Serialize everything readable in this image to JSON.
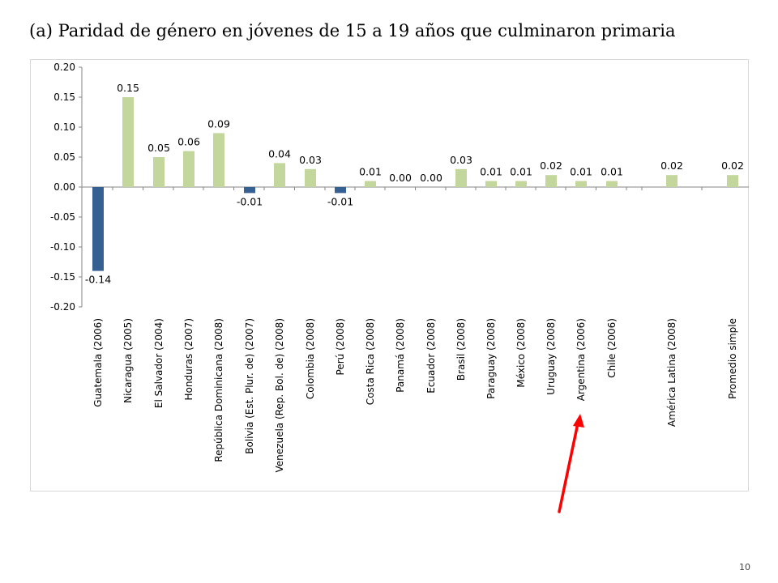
{
  "title": "(a) Paridad de género en jóvenes de 15 a 19 años que culminaron primaria",
  "page_number": "10",
  "colors": {
    "positive": "#c3d69b",
    "negative": "#376092",
    "annotation_arrow": "#ff0000"
  },
  "annotation": {
    "type": "arrow",
    "points_to": "Argentina (2006)"
  },
  "chart_data": {
    "type": "bar",
    "title": "",
    "xlabel": "",
    "ylabel": "",
    "ylim": [
      -0.2,
      0.2
    ],
    "yticks": [
      "0.20",
      "0.15",
      "0.10",
      "0.05",
      "0.00",
      "-0.05",
      "-0.10",
      "-0.15",
      "-0.20"
    ],
    "grid": false,
    "legend": "none",
    "categories": [
      "Guatemala (2006)",
      "Nicaragua (2005)",
      "El Salvador (2004)",
      "Honduras (2007)",
      "República Dominicana (2008)",
      "Bolivia (Est. Plur. de) (2007)",
      "Venezuela (Rep. Bol. de) (2008)",
      "Colombia (2008)",
      "Perú (2008)",
      "Costa Rica (2008)",
      "Panamá (2008)",
      "Ecuador (2008)",
      "Brasil (2008)",
      "Paraguay (2008)",
      "México (2008)",
      "Uruguay (2008)",
      "Argentina (2006)",
      "Chile (2006)",
      "América Latina (2008)",
      "Promedio simple"
    ],
    "values": [
      -0.14,
      0.15,
      0.05,
      0.06,
      0.09,
      -0.01,
      0.04,
      0.03,
      -0.01,
      0.01,
      0.0,
      0.0,
      0.03,
      0.01,
      0.01,
      0.02,
      0.01,
      0.01,
      0.02,
      0.02
    ],
    "data_labels": [
      "-0.14",
      "0.15",
      "0.05",
      "0.06",
      "0.09",
      "-0.01",
      "0.04",
      "0.03",
      "-0.01",
      "0.01",
      "0.00",
      "0.00",
      "0.03",
      "0.01",
      "0.01",
      "0.02",
      "0.01",
      "0.01",
      "0.02",
      "0.02"
    ]
  }
}
